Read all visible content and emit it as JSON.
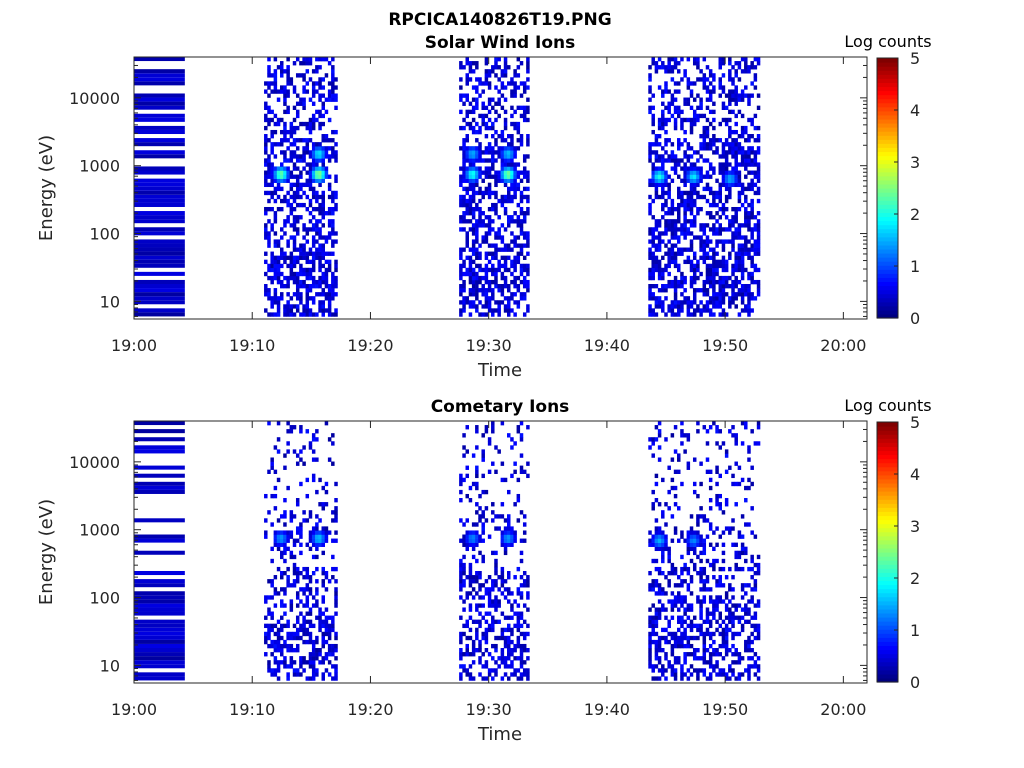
{
  "figure": {
    "title": "RPCICA140826T19.PNG"
  },
  "chart_data": [
    {
      "type": "heatmap",
      "title": "Solar Wind Ions",
      "xlabel": "Time",
      "ylabel": "Energy (eV)",
      "x_ticks": [
        "19:00",
        "19:10",
        "19:20",
        "19:30",
        "19:40",
        "19:50",
        "20:00"
      ],
      "xlim": [
        "19:00",
        "20:02"
      ],
      "y_scale": "log",
      "y_ticks": [
        "10",
        "100",
        "1000",
        "10000"
      ],
      "ylim": [
        5.5,
        40000
      ],
      "colorbar": {
        "label": "Log counts",
        "ticks": [
          "0",
          "1",
          "2",
          "3",
          "4",
          "5"
        ],
        "range": [
          0,
          5
        ],
        "colormap": "jet"
      },
      "grid": false,
      "data_time_ranges": [
        [
          "19:00",
          "19:04.3"
        ],
        [
          "19:11",
          "19:17.2"
        ],
        [
          "19:27.5",
          "19:33.3"
        ],
        [
          "19:43.5",
          "19:52.7"
        ]
      ],
      "peaks": [
        {
          "time": "19:12.3",
          "energy_ev": 700,
          "log_counts": 2.4
        },
        {
          "time": "19:15.5",
          "energy_ev": 700,
          "log_counts": 2.6
        },
        {
          "time": "19:15.5",
          "energy_ev": 1400,
          "log_counts": 1.8
        },
        {
          "time": "19:28.5",
          "energy_ev": 700,
          "log_counts": 2.0
        },
        {
          "time": "19:28.5",
          "energy_ev": 1400,
          "log_counts": 1.5
        },
        {
          "time": "19:31.5",
          "energy_ev": 700,
          "log_counts": 2.5
        },
        {
          "time": "19:31.5",
          "energy_ev": 1400,
          "log_counts": 1.6
        },
        {
          "time": "19:44.3",
          "energy_ev": 650,
          "log_counts": 2.0
        },
        {
          "time": "19:47.2",
          "energy_ev": 650,
          "log_counts": 1.8
        },
        {
          "time": "19:50.3",
          "energy_ev": 600,
          "log_counts": 1.5
        }
      ]
    },
    {
      "type": "heatmap",
      "title": "Cometary Ions",
      "xlabel": "Time",
      "ylabel": "Energy (eV)",
      "x_ticks": [
        "19:00",
        "19:10",
        "19:20",
        "19:30",
        "19:40",
        "19:50",
        "20:00"
      ],
      "xlim": [
        "19:00",
        "20:02"
      ],
      "y_scale": "log",
      "y_ticks": [
        "10",
        "100",
        "1000",
        "10000"
      ],
      "ylim": [
        5.5,
        40000
      ],
      "colorbar": {
        "label": "Log counts",
        "ticks": [
          "0",
          "1",
          "2",
          "3",
          "4",
          "5"
        ],
        "range": [
          0,
          5
        ],
        "colormap": "jet"
      },
      "grid": false,
      "data_time_ranges": [
        [
          "19:00",
          "19:04.3"
        ],
        [
          "19:11",
          "19:17.2"
        ],
        [
          "19:27.5",
          "19:33.3"
        ],
        [
          "19:43.5",
          "19:52.7"
        ]
      ],
      "peaks": [
        {
          "time": "19:12.3",
          "energy_ev": 700,
          "log_counts": 1.4
        },
        {
          "time": "19:15.5",
          "energy_ev": 700,
          "log_counts": 1.6
        },
        {
          "time": "19:28.5",
          "energy_ev": 700,
          "log_counts": 1.3
        },
        {
          "time": "19:31.5",
          "energy_ev": 700,
          "log_counts": 1.4
        },
        {
          "time": "19:44.3",
          "energy_ev": 650,
          "log_counts": 1.5
        },
        {
          "time": "19:47.2",
          "energy_ev": 650,
          "log_counts": 1.3
        }
      ]
    }
  ]
}
